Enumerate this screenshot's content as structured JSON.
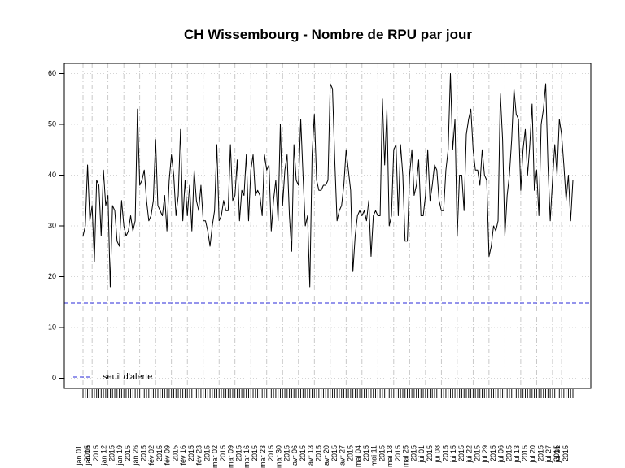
{
  "chart_data": {
    "type": "line",
    "title": "CH Wissembourg  - Nombre de RPU par jour",
    "xlabel": "",
    "ylabel": "",
    "ylim": [
      -2,
      62
    ],
    "y_ticks": [
      0,
      10,
      20,
      30,
      40,
      50,
      60
    ],
    "grid": true,
    "legend_position": "bottom-left",
    "x_tick_labels": [
      "jan 01",
      "2015",
      "jan 05",
      "2015",
      "jan 12",
      "2015",
      "jan 19",
      "2015",
      "jan 26",
      "2015",
      "fév 02",
      "2015",
      "fév 09",
      "2015",
      "fév 16",
      "2015",
      "fév 23",
      "2015",
      "mar 02",
      "2015",
      "mar 09",
      "2015",
      "mar 16",
      "2015",
      "mar 23",
      "2015",
      "mar 30",
      "2015",
      "avr 06",
      "2015",
      "avr 13",
      "2015",
      "avr 20",
      "2015",
      "avr 27",
      "2015",
      "mai 04",
      "2015",
      "mai 11",
      "2015",
      "mai 18",
      "2015",
      "mai 25",
      "2015",
      "jui 01",
      "2015",
      "jui 08",
      "2015",
      "jui 15",
      "2015",
      "jui 22",
      "2015",
      "jui 29",
      "2015",
      "jul 06",
      "2015",
      "jul 13",
      "2015",
      "jul 20",
      "2015",
      "jul 27",
      "2015",
      "jul 31",
      "2015"
    ],
    "x_tick_days": [
      0,
      4,
      11,
      18,
      25,
      32,
      39,
      46,
      53,
      60,
      67,
      74,
      81,
      88,
      95,
      102,
      109,
      116,
      123,
      130,
      137,
      144,
      151,
      158,
      165,
      172,
      179,
      186,
      193,
      200,
      207,
      211
    ],
    "series": [
      {
        "name": "",
        "color": "#000000",
        "values": [
          28,
          30,
          42,
          31,
          34,
          23,
          39,
          38,
          28,
          41,
          34,
          36,
          18,
          34,
          33,
          27,
          26,
          35,
          30,
          28,
          29,
          32,
          29,
          31,
          53,
          38,
          39,
          41,
          35,
          31,
          32,
          35,
          47,
          34,
          33,
          32,
          36,
          29,
          39,
          44,
          40,
          32,
          36,
          49,
          31,
          39,
          32,
          38,
          29,
          41,
          35,
          33,
          38,
          31,
          31,
          29,
          26,
          30,
          33,
          46,
          31,
          32,
          35,
          33,
          33,
          46,
          35,
          36,
          43,
          31,
          37,
          36,
          44,
          31,
          41,
          44,
          36,
          37,
          36,
          32,
          44,
          41,
          42,
          29,
          35,
          39,
          31,
          50,
          34,
          41,
          44,
          32,
          25,
          46,
          39,
          38,
          51,
          40,
          30,
          32,
          18,
          44,
          52,
          39,
          37,
          37,
          38,
          38,
          39,
          58,
          57,
          43,
          31,
          33,
          34,
          38,
          45,
          41,
          37,
          21,
          28,
          32,
          33,
          32,
          33,
          31,
          35,
          24,
          32,
          33,
          32,
          32,
          55,
          42,
          53,
          30,
          32,
          45,
          46,
          32,
          46,
          40,
          27,
          27,
          40,
          45,
          36,
          38,
          43,
          32,
          32,
          36,
          45,
          35,
          38,
          42,
          41,
          35,
          33,
          33,
          41,
          45,
          60,
          45,
          51,
          28,
          40,
          40,
          33,
          48,
          51,
          53,
          45,
          41,
          41,
          38,
          45,
          40,
          39,
          24,
          26,
          30,
          29,
          31,
          56,
          47,
          28,
          36,
          40,
          47,
          57,
          52,
          51,
          37,
          45,
          49,
          40,
          46,
          54,
          37,
          41,
          32,
          50,
          53,
          58,
          42,
          31,
          39,
          46,
          40,
          51,
          48,
          42,
          35,
          40,
          31,
          39
        ]
      }
    ],
    "threshold": {
      "value": 14.8,
      "label": "seuil d'alerte",
      "color": "#2a2ad8"
    }
  }
}
